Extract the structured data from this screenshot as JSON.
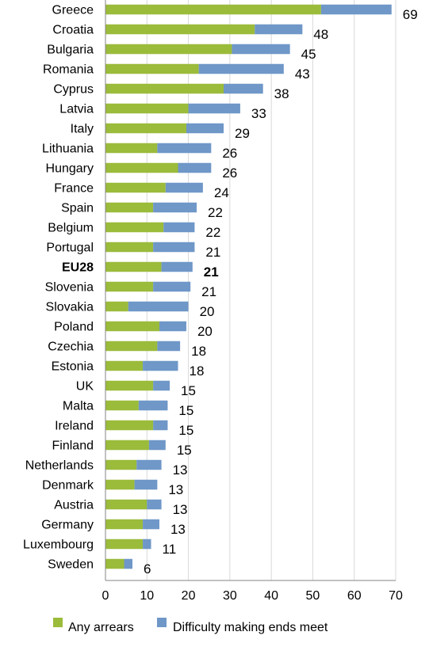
{
  "chart_data": {
    "type": "bar",
    "orientation": "horizontal",
    "stacked": true,
    "categories": [
      "Greece",
      "Croatia",
      "Bulgaria",
      "Romania",
      "Cyprus",
      "Latvia",
      "Italy",
      "Lithuania",
      "Hungary",
      "France",
      "Spain",
      "Belgium",
      "Portugal",
      "EU28",
      "Slovenia",
      "Slovakia",
      "Poland",
      "Czechia",
      "Estonia",
      "UK",
      "Malta",
      "Ireland",
      "Finland",
      "Netherlands",
      "Denmark",
      "Austria",
      "Germany",
      "Luxembourg",
      "Sweden"
    ],
    "highlight_category": "EU28",
    "series": [
      {
        "name": "Any arrears",
        "color": "#9BBB3B",
        "values": [
          52,
          36,
          30.5,
          22.5,
          28.5,
          20,
          19.5,
          12.5,
          17.5,
          14.5,
          11.5,
          14,
          11.5,
          13.5,
          11.5,
          5.5,
          13,
          12.5,
          9,
          11.5,
          8,
          11.5,
          10.5,
          7.5,
          7,
          10,
          9,
          9,
          4.5
        ]
      },
      {
        "name": "Difficulty making ends meet",
        "color": "#6F97C8",
        "values": [
          17,
          11.5,
          14,
          20.5,
          9.5,
          12.5,
          9,
          13,
          8,
          9,
          10.5,
          7.5,
          10,
          7.5,
          9,
          14.5,
          6.5,
          5.5,
          8.5,
          4,
          7,
          3.5,
          4,
          6,
          5.5,
          3.5,
          4,
          2,
          2
        ]
      }
    ],
    "totals": [
      "69",
      "48",
      "45",
      "43",
      "38",
      "33",
      "29",
      "26",
      "26",
      "24",
      "22",
      "22",
      "21",
      "21",
      "21",
      "20",
      "20",
      "18",
      "18",
      "15",
      "15",
      "15",
      "15",
      "13",
      "13",
      "13",
      "13",
      "11",
      "6"
    ],
    "x_ticks": [
      "0",
      "10",
      "20",
      "30",
      "40",
      "50",
      "60",
      "70"
    ],
    "xlim": [
      0,
      70
    ],
    "grid": "vertical",
    "legend_position": "bottom",
    "title": "",
    "xlabel": "",
    "ylabel": ""
  }
}
